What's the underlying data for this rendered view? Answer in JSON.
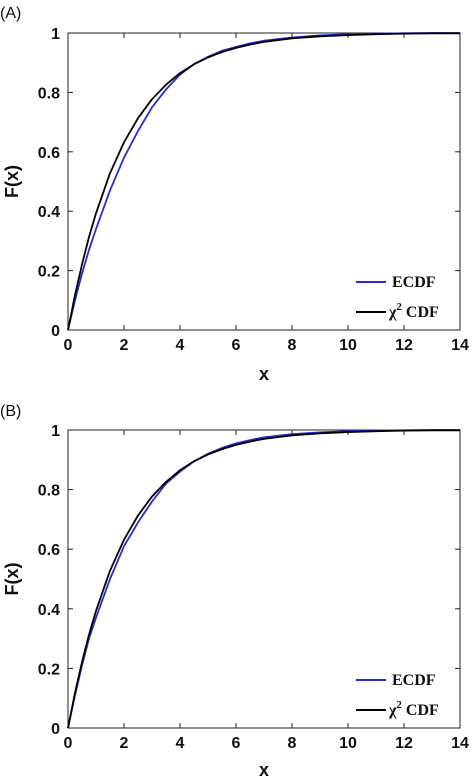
{
  "chart_data": [
    {
      "type": "line",
      "panel_label": "(A)",
      "xlabel": "x",
      "ylabel": "F(x)",
      "xlim": [
        0,
        14
      ],
      "ylim": [
        0,
        1
      ],
      "xticks": [
        "0",
        "2",
        "4",
        "6",
        "8",
        "10",
        "12",
        "14"
      ],
      "yticks": [
        "0",
        "0.2",
        "0.4",
        "0.6",
        "0.8",
        "1"
      ],
      "grid": false,
      "legend_position": "bottom-right",
      "series": [
        {
          "name": "ECDF",
          "color": "#2a2ad0",
          "x": [
            0,
            0.25,
            0.5,
            0.75,
            1,
            1.5,
            2,
            2.5,
            3,
            3.5,
            4,
            4.5,
            5,
            5.5,
            6,
            6.5,
            7,
            8,
            9,
            10,
            11,
            12,
            13,
            14
          ],
          "y": [
            0,
            0.1,
            0.19,
            0.27,
            0.34,
            0.47,
            0.58,
            0.67,
            0.75,
            0.81,
            0.86,
            0.895,
            0.92,
            0.94,
            0.953,
            0.965,
            0.974,
            0.985,
            0.992,
            0.996,
            0.998,
            0.999,
            1,
            1
          ]
        },
        {
          "name": "χ2 CDF",
          "name_main": "χ",
          "name_sup": "2",
          "name_suffix": "CDF",
          "color": "#000000",
          "x": [
            0,
            0.25,
            0.5,
            0.75,
            1,
            1.5,
            2,
            2.5,
            3,
            3.5,
            4,
            4.5,
            5,
            5.5,
            6,
            6.5,
            7,
            8,
            9,
            10,
            11,
            12,
            13,
            14
          ],
          "y": [
            0,
            0.118,
            0.221,
            0.313,
            0.393,
            0.528,
            0.632,
            0.713,
            0.777,
            0.826,
            0.865,
            0.895,
            0.918,
            0.936,
            0.95,
            0.961,
            0.97,
            0.982,
            0.989,
            0.993,
            0.996,
            0.998,
            0.999,
            0.999
          ]
        }
      ]
    },
    {
      "type": "line",
      "panel_label": "(B)",
      "xlabel": "x",
      "ylabel": "F(x)",
      "xlim": [
        0,
        14
      ],
      "ylim": [
        0,
        1
      ],
      "xticks": [
        "0",
        "2",
        "4",
        "6",
        "8",
        "10",
        "12",
        "14"
      ],
      "yticks": [
        "0",
        "0.2",
        "0.4",
        "0.6",
        "0.8",
        "1"
      ],
      "grid": false,
      "legend_position": "bottom-right",
      "series": [
        {
          "name": "ECDF",
          "color": "#2a2ad0",
          "x": [
            0,
            0.25,
            0.5,
            0.75,
            1,
            1.5,
            2,
            2.5,
            3,
            3.5,
            4,
            4.5,
            5,
            5.5,
            6,
            6.5,
            7,
            8,
            9,
            10,
            11,
            12,
            13,
            14
          ],
          "y": [
            0,
            0.11,
            0.21,
            0.3,
            0.37,
            0.5,
            0.61,
            0.69,
            0.76,
            0.82,
            0.86,
            0.895,
            0.92,
            0.94,
            0.955,
            0.966,
            0.975,
            0.986,
            0.992,
            0.996,
            0.998,
            0.999,
            1,
            1
          ]
        },
        {
          "name": "χ2 CDF",
          "name_main": "χ",
          "name_sup": "2",
          "name_suffix": "CDF",
          "color": "#000000",
          "x": [
            0,
            0.25,
            0.5,
            0.75,
            1,
            1.5,
            2,
            2.5,
            3,
            3.5,
            4,
            4.5,
            5,
            5.5,
            6,
            6.5,
            7,
            8,
            9,
            10,
            11,
            12,
            13,
            14
          ],
          "y": [
            0,
            0.118,
            0.221,
            0.313,
            0.393,
            0.528,
            0.632,
            0.713,
            0.777,
            0.826,
            0.865,
            0.895,
            0.918,
            0.936,
            0.95,
            0.961,
            0.97,
            0.982,
            0.989,
            0.993,
            0.996,
            0.998,
            0.999,
            0.999
          ]
        }
      ]
    }
  ]
}
